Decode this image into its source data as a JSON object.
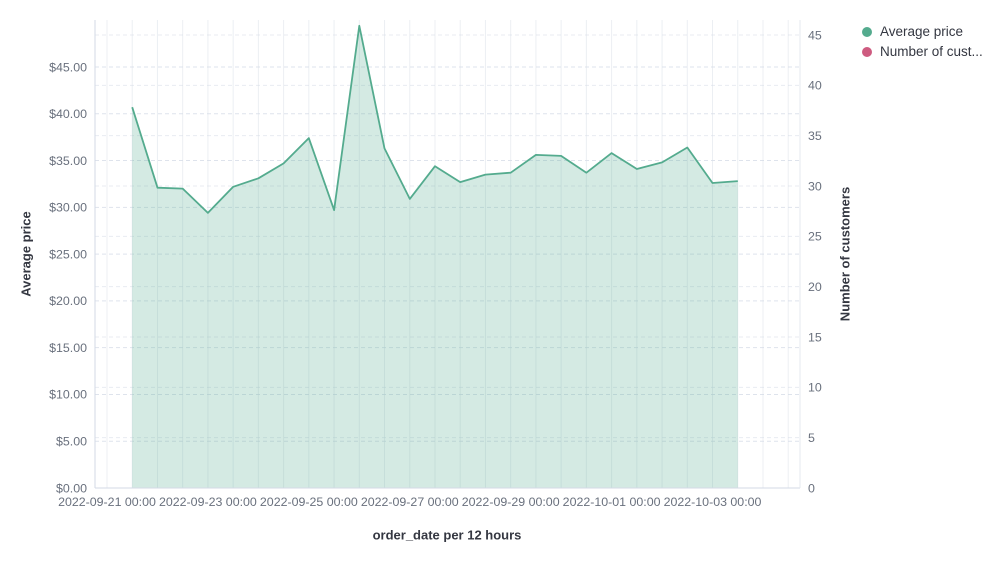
{
  "legend": {
    "items": [
      {
        "label": "Average price",
        "color": "#54AB8E"
      },
      {
        "label": "Number of cust...",
        "color": "#CE5B80"
      }
    ]
  },
  "axes": {
    "left_title": "Average price",
    "right_title": "Number of customers",
    "x_title": "order_date per 12 hours",
    "left_ticks": [
      "$0.00",
      "$5.00",
      "$10.00",
      "$15.00",
      "$20.00",
      "$25.00",
      "$30.00",
      "$35.00",
      "$40.00",
      "$45.00"
    ],
    "right_ticks": [
      "0",
      "5",
      "10",
      "15",
      "20",
      "25",
      "30",
      "35",
      "40",
      "45"
    ],
    "x_ticks": [
      "2022-09-21 00:00",
      "2022-09-23 00:00",
      "2022-09-25 00:00",
      "2022-09-27 00:00",
      "2022-09-29 00:00",
      "2022-10-01 00:00",
      "2022-10-03 00:00"
    ]
  },
  "chart_data": {
    "type": "area",
    "title": "",
    "xlabel": "order_date per 12 hours",
    "ylabel_left": "Average price",
    "ylabel_right": "Number of customers",
    "ylim_left": [
      0,
      45
    ],
    "ylim_right": [
      0,
      45
    ],
    "grid": true,
    "legend_position": "top-right",
    "x_interval": "12 hours",
    "x": [
      "2022-09-21 12:00",
      "2022-09-22 00:00",
      "2022-09-22 12:00",
      "2022-09-23 00:00",
      "2022-09-23 12:00",
      "2022-09-24 00:00",
      "2022-09-24 12:00",
      "2022-09-25 00:00",
      "2022-09-25 12:00",
      "2022-09-26 00:00",
      "2022-09-26 12:00",
      "2022-09-27 00:00",
      "2022-09-27 12:00",
      "2022-09-28 00:00",
      "2022-09-28 12:00",
      "2022-09-29 00:00",
      "2022-09-29 12:00",
      "2022-09-30 00:00",
      "2022-09-30 12:00",
      "2022-10-01 00:00",
      "2022-10-01 12:00",
      "2022-10-02 00:00",
      "2022-10-02 12:00",
      "2022-10-03 00:00",
      "2022-10-03 12:00"
    ],
    "series": [
      {
        "name": "Average price",
        "yaxis": "left",
        "color": "#54AB8E",
        "fill_opacity": 0.25,
        "visible": true,
        "values": [
          40.7,
          32.1,
          32.0,
          29.4,
          32.2,
          33.1,
          34.7,
          37.4,
          29.7,
          49.4,
          36.3,
          30.9,
          34.4,
          32.7,
          33.5,
          33.7,
          35.6,
          35.5,
          33.7,
          35.8,
          34.1,
          34.8,
          36.4,
          32.6,
          32.8
        ]
      },
      {
        "name": "Number of customers",
        "yaxis": "right",
        "color": "#CE5B80",
        "visible": false,
        "values": []
      }
    ]
  },
  "colors": {
    "background": "#FFFFFF",
    "tick_label": "#69707D",
    "axis_title": "#343741",
    "gridline_vertical": "#ECEFF3",
    "gridline_horizontal": "#D9DFE9",
    "axis_line": "#D3DAE6"
  }
}
